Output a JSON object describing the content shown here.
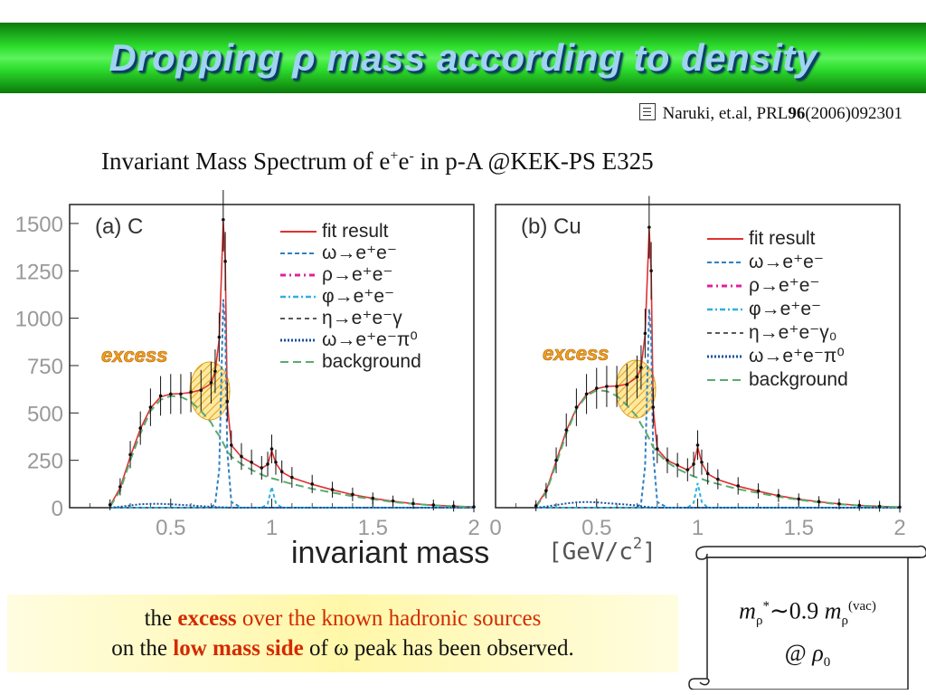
{
  "title": "Dropping ρ mass according to density",
  "reference": {
    "prefix": "Naruki, et.al, PRL",
    "volume": "96",
    "suffix": "(2006)092301"
  },
  "subtitle": {
    "lead": "Invariant Mass Spectrum of e",
    "plus": "+",
    "mid": "e",
    "minus": "-",
    "tail": " in p-A @KEK-PS E325"
  },
  "chart_data": [
    {
      "type": "scatter",
      "panel_label": "(a) C",
      "annotation": "excess",
      "xlim": [
        0,
        2
      ],
      "ylim": [
        0,
        1600
      ],
      "x_ticks": [
        "0.5",
        "1",
        "1.5",
        "2"
      ],
      "y_ticks": [
        "0",
        "250",
        "500",
        "750",
        "1000",
        "1250",
        "1500"
      ],
      "legend": [
        "fit result",
        "ω→e⁺e⁻",
        "ρ→e⁺e⁻",
        "φ→e⁺e⁻",
        "η→e⁺e⁻γ",
        "ω→e⁺e⁻π⁰",
        "background"
      ],
      "x": [
        0.2,
        0.25,
        0.3,
        0.35,
        0.4,
        0.45,
        0.5,
        0.55,
        0.6,
        0.65,
        0.7,
        0.72,
        0.74,
        0.76,
        0.77,
        0.78,
        0.8,
        0.85,
        0.9,
        0.95,
        0.98,
        1.0,
        1.02,
        1.05,
        1.1,
        1.2,
        1.3,
        1.4,
        1.5,
        1.6,
        1.7,
        1.8,
        1.9,
        2.0
      ],
      "y": [
        15,
        110,
        280,
        420,
        530,
        590,
        600,
        600,
        610,
        620,
        660,
        720,
        900,
        1520,
        1300,
        560,
        330,
        270,
        240,
        210,
        230,
        310,
        240,
        190,
        160,
        125,
        95,
        70,
        50,
        35,
        22,
        14,
        8,
        4
      ],
      "series": [
        {
          "name": "fit result",
          "color": "#e03030",
          "y": [
            10,
            105,
            270,
            415,
            525,
            585,
            600,
            602,
            608,
            622,
            655,
            718,
            890,
            1510,
            1300,
            555,
            330,
            268,
            238,
            208,
            228,
            300,
            235,
            188,
            158,
            123,
            94,
            69,
            49,
            34,
            21,
            13,
            8,
            4
          ]
        },
        {
          "name": "ω→e⁺e⁻",
          "color": "#3080c0",
          "y": [
            0,
            0,
            0,
            0,
            0,
            0,
            0,
            0,
            0,
            0,
            2,
            20,
            200,
            1100,
            950,
            300,
            30,
            0,
            0,
            0,
            0,
            0,
            0,
            0,
            0,
            0,
            0,
            0,
            0,
            0,
            0,
            0,
            0,
            0
          ]
        },
        {
          "name": "φ→e⁺e⁻",
          "color": "#30b0e0",
          "y": [
            0,
            0,
            0,
            0,
            0,
            0,
            0,
            0,
            0,
            0,
            0,
            0,
            0,
            0,
            0,
            0,
            0,
            0,
            0,
            0,
            20,
            110,
            25,
            0,
            0,
            0,
            0,
            0,
            0,
            0,
            0,
            0,
            0,
            0
          ]
        },
        {
          "name": "ω→e⁺e⁻π⁰",
          "color": "#1850a0",
          "y": [
            0,
            5,
            12,
            18,
            20,
            20,
            18,
            15,
            12,
            8,
            5,
            4,
            3,
            2,
            1,
            1,
            0,
            0,
            0,
            0,
            0,
            0,
            0,
            0,
            0,
            0,
            0,
            0,
            0,
            0,
            0,
            0,
            0,
            0
          ]
        },
        {
          "name": "background",
          "color": "#5aaa70",
          "y": [
            5,
            90,
            250,
            390,
            510,
            570,
            590,
            585,
            560,
            510,
            450,
            410,
            380,
            340,
            320,
            300,
            270,
            230,
            200,
            175,
            162,
            155,
            150,
            140,
            125,
            100,
            80,
            60,
            45,
            30,
            20,
            12,
            7,
            3
          ]
        }
      ]
    },
    {
      "type": "scatter",
      "panel_label": "(b) Cu",
      "annotation": "excess",
      "xlim": [
        0,
        2
      ],
      "ylim": [
        0,
        1600
      ],
      "x_ticks": [
        "0",
        "0.5",
        "1",
        "1.5",
        "2"
      ],
      "y_ticks": [],
      "legend": [
        "fit result",
        "ω→e⁺e⁻",
        "ρ→e⁺e⁻",
        "φ→e⁺e⁻",
        "η→e⁺e⁻γ₀",
        "ω→e⁺e⁻π⁰",
        "background"
      ],
      "x": [
        0.2,
        0.25,
        0.3,
        0.35,
        0.4,
        0.45,
        0.5,
        0.55,
        0.6,
        0.65,
        0.7,
        0.72,
        0.74,
        0.76,
        0.77,
        0.78,
        0.8,
        0.85,
        0.9,
        0.95,
        0.98,
        1.0,
        1.02,
        1.05,
        1.1,
        1.2,
        1.3,
        1.4,
        1.5,
        1.6,
        1.7,
        1.8,
        1.9,
        2.0
      ],
      "y": [
        10,
        90,
        250,
        410,
        530,
        600,
        630,
        640,
        640,
        650,
        690,
        740,
        920,
        1480,
        1250,
        530,
        310,
        250,
        225,
        200,
        230,
        330,
        240,
        180,
        150,
        115,
        88,
        64,
        46,
        32,
        20,
        12,
        7,
        3
      ],
      "series": [
        {
          "name": "fit result",
          "color": "#e03030",
          "y": [
            8,
            88,
            245,
            405,
            525,
            598,
            628,
            640,
            642,
            652,
            688,
            738,
            915,
            1470,
            1250,
            525,
            310,
            250,
            224,
            198,
            228,
            320,
            236,
            178,
            148,
            113,
            87,
            63,
            45,
            31,
            20,
            12,
            7,
            3
          ]
        },
        {
          "name": "ω→e⁺e⁻",
          "color": "#3080c0",
          "y": [
            0,
            0,
            0,
            0,
            0,
            0,
            0,
            0,
            0,
            0,
            2,
            22,
            220,
            1050,
            900,
            290,
            30,
            0,
            0,
            0,
            0,
            0,
            0,
            0,
            0,
            0,
            0,
            0,
            0,
            0,
            0,
            0,
            0,
            0
          ]
        },
        {
          "name": "φ→e⁺e⁻",
          "color": "#30b0e0",
          "y": [
            0,
            0,
            0,
            0,
            0,
            0,
            0,
            0,
            0,
            0,
            0,
            0,
            0,
            0,
            0,
            0,
            0,
            0,
            0,
            0,
            25,
            130,
            30,
            0,
            0,
            0,
            0,
            0,
            0,
            0,
            0,
            0,
            0,
            0
          ]
        },
        {
          "name": "ω→e⁺e⁻π⁰",
          "color": "#1850a0",
          "y": [
            0,
            6,
            14,
            22,
            28,
            30,
            28,
            24,
            20,
            16,
            12,
            8,
            5,
            3,
            2,
            1,
            0,
            0,
            0,
            0,
            0,
            0,
            0,
            0,
            0,
            0,
            0,
            0,
            0,
            0,
            0,
            0,
            0,
            0
          ]
        },
        {
          "name": "background",
          "color": "#5aaa70",
          "y": [
            4,
            80,
            230,
            390,
            520,
            590,
            620,
            615,
            590,
            540,
            480,
            440,
            405,
            365,
            340,
            320,
            290,
            240,
            205,
            180,
            165,
            158,
            152,
            140,
            125,
            98,
            78,
            58,
            42,
            28,
            18,
            11,
            6,
            3
          ]
        }
      ]
    }
  ],
  "x_axis_label": "invariant mass",
  "x_axis_unit": "[GeV/c",
  "x_axis_unit_exp": "2",
  "x_axis_unit_end": "]",
  "conclusion": {
    "l1a": "the ",
    "l1b": "excess",
    "l1c": " over the known hadronic sources",
    "l2a": "on the ",
    "l2b": "low mass side",
    "l2c": " of ω peak has been observed."
  },
  "formula": {
    "m": "m",
    "rho": "ρ",
    "star": "*",
    "approx": "∼0.9 ",
    "m2": "m",
    "rho2": "ρ",
    "vac": "(vac)",
    "at": "@ ",
    "rho0": "ρ",
    "zero": "0"
  },
  "colors": {
    "title_text": "#9fd3f0",
    "excess_text": "#f0a020",
    "highlight_red": "#d42a00"
  }
}
